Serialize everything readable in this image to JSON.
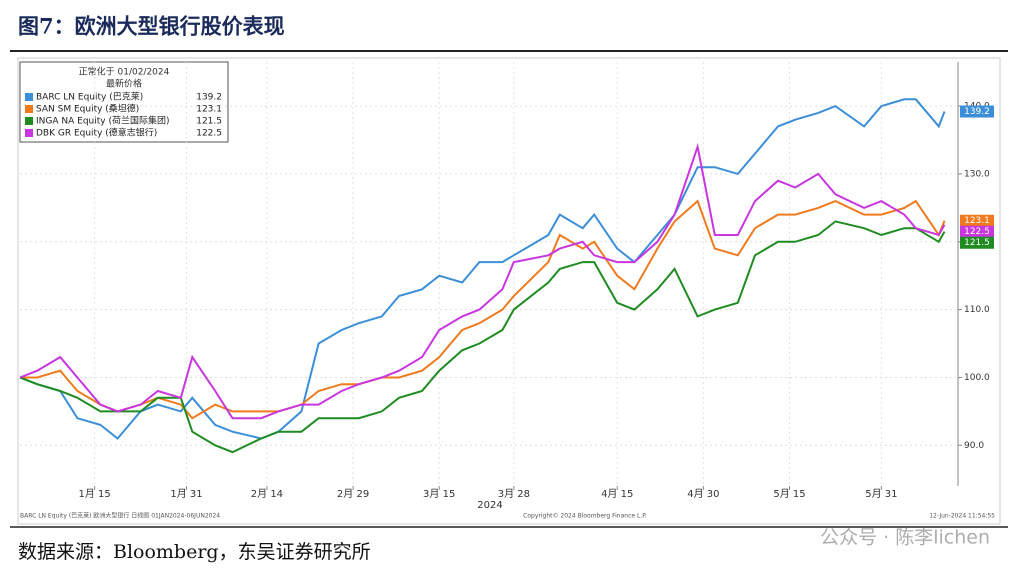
{
  "chart_data": {
    "type": "line",
    "title": "图7：欧洲大型银行股价表现",
    "legend_header": [
      "正常化于 01/02/2024",
      "最新价格"
    ],
    "x_year_label": "2024",
    "footer_left": "BARC LN Equity (巴克莱) 欧洲大型银行 日线图 01JAN2024-06JUN2024",
    "footer_center": "Copyright© 2024 Bloomberg Finance L.P.",
    "footer_right": "12-Jun-2024 11:54:55",
    "source": "数据来源：Bloomberg，东吴证券研究所",
    "watermark": "公众号 · 陈李lichen",
    "x": [
      "2024-01-02",
      "2024-01-05",
      "2024-01-09",
      "2024-01-12",
      "2024-01-16",
      "2024-01-19",
      "2024-01-23",
      "2024-01-26",
      "2024-01-30",
      "2024-02-01",
      "2024-02-05",
      "2024-02-08",
      "2024-02-13",
      "2024-02-16",
      "2024-02-20",
      "2024-02-23",
      "2024-02-27",
      "2024-03-01",
      "2024-03-05",
      "2024-03-08",
      "2024-03-12",
      "2024-03-15",
      "2024-03-19",
      "2024-03-22",
      "2024-03-26",
      "2024-03-28",
      "2024-04-03",
      "2024-04-05",
      "2024-04-09",
      "2024-04-11",
      "2024-04-15",
      "2024-04-18",
      "2024-04-22",
      "2024-04-25",
      "2024-04-29",
      "2024-05-02",
      "2024-05-06",
      "2024-05-09",
      "2024-05-13",
      "2024-05-16",
      "2024-05-20",
      "2024-05-23",
      "2024-05-28",
      "2024-05-31",
      "2024-06-04",
      "2024-06-06",
      "2024-06-10",
      "2024-06-11"
    ],
    "xlim": [
      "2024-01-02",
      "2024-06-13"
    ],
    "xticks": [
      {
        "value": "2024-01-15",
        "label": "1月 15"
      },
      {
        "value": "2024-01-31",
        "label": "1月 31"
      },
      {
        "value": "2024-02-14",
        "label": "2月 14"
      },
      {
        "value": "2024-02-29",
        "label": "2月 29"
      },
      {
        "value": "2024-03-15",
        "label": "3月 15"
      },
      {
        "value": "2024-03-28",
        "label": "3月 28"
      },
      {
        "value": "2024-04-15",
        "label": "4月 15"
      },
      {
        "value": "2024-04-30",
        "label": "4月 30"
      },
      {
        "value": "2024-05-15",
        "label": "5月 15"
      },
      {
        "value": "2024-05-31",
        "label": "5月 31"
      }
    ],
    "ylim": [
      84,
      146.5
    ],
    "yticks": [
      {
        "value": 90,
        "label": "90.0"
      },
      {
        "value": 100,
        "label": "100.0"
      },
      {
        "value": 110,
        "label": "110.0"
      },
      {
        "value": 120,
        "label": "120.0"
      },
      {
        "value": 130,
        "label": "130.0"
      },
      {
        "value": 140,
        "label": "140.0"
      }
    ],
    "grid": true,
    "series": [
      {
        "name": "BARC LN Equity (巴克莱)",
        "color": "#3b8ed8",
        "values": [
          100,
          99,
          98,
          94,
          93,
          91,
          95,
          96,
          95,
          97,
          93,
          92,
          91,
          92,
          95,
          105,
          107,
          108,
          109,
          112,
          113,
          115,
          114,
          117,
          117,
          118,
          121,
          124,
          122,
          124,
          119,
          117,
          121,
          124,
          131,
          131,
          130,
          133,
          137,
          138,
          139,
          140,
          137,
          140,
          141,
          141,
          137,
          139.2
        ]
      },
      {
        "name": "SAN SM Equity (桑坦德)",
        "color": "#f07a1e",
        "values": [
          100,
          100,
          101,
          98,
          96,
          95,
          96,
          97,
          96,
          94,
          96,
          95,
          95,
          95,
          96,
          98,
          99,
          99,
          100,
          100,
          101,
          103,
          107,
          108,
          110,
          112,
          117,
          121,
          119,
          120,
          115,
          113,
          119,
          123,
          126,
          119,
          118,
          122,
          124,
          124,
          125,
          126,
          124,
          124,
          125,
          126,
          121,
          123.1
        ]
      },
      {
        "name": "INGA NA Equity (荷兰国际集团)",
        "color": "#1f8c22",
        "values": [
          100,
          99,
          98,
          97,
          95,
          95,
          95,
          97,
          97,
          92,
          90,
          89,
          91,
          92,
          92,
          94,
          94,
          94,
          95,
          97,
          98,
          101,
          104,
          105,
          107,
          110,
          114,
          116,
          117,
          117,
          111,
          110,
          113,
          116,
          109,
          110,
          111,
          118,
          120,
          120,
          121,
          123,
          122,
          121,
          122,
          122,
          120,
          121.5
        ]
      },
      {
        "name": "DBK GR Equity (德意志银行)",
        "color": "#c936e0",
        "values": [
          100,
          101,
          103,
          100,
          96,
          95,
          96,
          98,
          97,
          103,
          98,
          94,
          94,
          95,
          96,
          96,
          98,
          99,
          100,
          101,
          103,
          107,
          109,
          110,
          113,
          117,
          118,
          119,
          120,
          118,
          117,
          117,
          120,
          124,
          134,
          121,
          121,
          126,
          129,
          128,
          130,
          127,
          125,
          126,
          124,
          122,
          121,
          122.5
        ]
      }
    ]
  }
}
